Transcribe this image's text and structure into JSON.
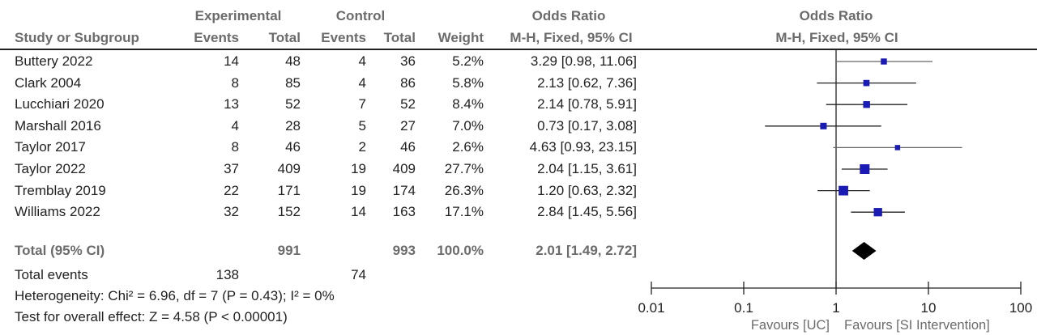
{
  "header": {
    "group1": "Experimental",
    "group2": "Control",
    "or_left": "Odds Ratio",
    "or_right": "Odds Ratio",
    "col_study": "Study or Subgroup",
    "col_events1": "Events",
    "col_total1": "Total",
    "col_events2": "Events",
    "col_total2": "Total",
    "col_weight": "Weight",
    "col_method_left": "M-H, Fixed, 95% CI",
    "col_method_right": "M-H, Fixed, 95% CI"
  },
  "studies": [
    {
      "name": "Buttery 2022",
      "e1": "14",
      "t1": "48",
      "e2": "4",
      "t2": "36",
      "weight": "5.2%",
      "or_text": "3.29 [0.98, 11.06]"
    },
    {
      "name": "Clark 2004",
      "e1": "8",
      "t1": "85",
      "e2": "4",
      "t2": "86",
      "weight": "5.8%",
      "or_text": "2.13 [0.62, 7.36]"
    },
    {
      "name": "Lucchiari 2020",
      "e1": "13",
      "t1": "52",
      "e2": "7",
      "t2": "52",
      "weight": "8.4%",
      "or_text": "2.14 [0.78, 5.91]"
    },
    {
      "name": "Marshall 2016",
      "e1": "4",
      "t1": "28",
      "e2": "5",
      "t2": "27",
      "weight": "7.0%",
      "or_text": "0.73 [0.17, 3.08]"
    },
    {
      "name": "Taylor 2017",
      "e1": "8",
      "t1": "46",
      "e2": "2",
      "t2": "46",
      "weight": "2.6%",
      "or_text": "4.63 [0.93, 23.15]"
    },
    {
      "name": "Taylor 2022",
      "e1": "37",
      "t1": "409",
      "e2": "19",
      "t2": "409",
      "weight": "27.7%",
      "or_text": "2.04 [1.15, 3.61]"
    },
    {
      "name": "Tremblay 2019",
      "e1": "22",
      "t1": "171",
      "e2": "19",
      "t2": "174",
      "weight": "26.3%",
      "or_text": "1.20 [0.63, 2.32]"
    },
    {
      "name": "Williams 2022",
      "e1": "32",
      "t1": "152",
      "e2": "14",
      "t2": "163",
      "weight": "17.1%",
      "or_text": "2.84 [1.45, 5.56]"
    }
  ],
  "total": {
    "label": "Total (95% CI)",
    "t1": "991",
    "t2": "993",
    "weight": "100.0%",
    "or_text": "2.01 [1.49, 2.72]"
  },
  "total_events": {
    "label": "Total events",
    "e1": "138",
    "e2": "74"
  },
  "heterogeneity": "Heterogeneity: Chi² = 6.96, df = 7 (P = 0.43); I² = 0%",
  "overall_effect": "Test for overall effect: Z = 4.58 (P < 0.00001)",
  "axis": {
    "ticks": [
      "0.01",
      "0.1",
      "1",
      "10",
      "100"
    ]
  },
  "favours": {
    "left": "Favours [UC]",
    "right": "Favours [SI Intervention]"
  },
  "colors": {
    "marker": "#1a1ab5",
    "line": "#222222",
    "diamond": "#000000"
  },
  "chart_data": {
    "type": "forest",
    "scale": "log",
    "xlim": [
      0.01,
      100
    ],
    "x_ticks": [
      0.01,
      0.1,
      1,
      10,
      100
    ],
    "null_line": 1,
    "studies": [
      {
        "name": "Buttery 2022",
        "or": 3.29,
        "lo": 0.98,
        "hi": 11.06,
        "weight": 5.2
      },
      {
        "name": "Clark 2004",
        "or": 2.13,
        "lo": 0.62,
        "hi": 7.36,
        "weight": 5.8
      },
      {
        "name": "Lucchiari 2020",
        "or": 2.14,
        "lo": 0.78,
        "hi": 5.91,
        "weight": 8.4
      },
      {
        "name": "Marshall 2016",
        "or": 0.73,
        "lo": 0.17,
        "hi": 3.08,
        "weight": 7.0
      },
      {
        "name": "Taylor 2017",
        "or": 4.63,
        "lo": 0.93,
        "hi": 23.15,
        "weight": 2.6
      },
      {
        "name": "Taylor 2022",
        "or": 2.04,
        "lo": 1.15,
        "hi": 3.61,
        "weight": 27.7
      },
      {
        "name": "Tremblay 2019",
        "or": 1.2,
        "lo": 0.63,
        "hi": 2.32,
        "weight": 26.3
      },
      {
        "name": "Williams 2022",
        "or": 2.84,
        "lo": 1.45,
        "hi": 5.56,
        "weight": 17.1
      }
    ],
    "pooled": {
      "or": 2.01,
      "lo": 1.49,
      "hi": 2.72
    }
  }
}
